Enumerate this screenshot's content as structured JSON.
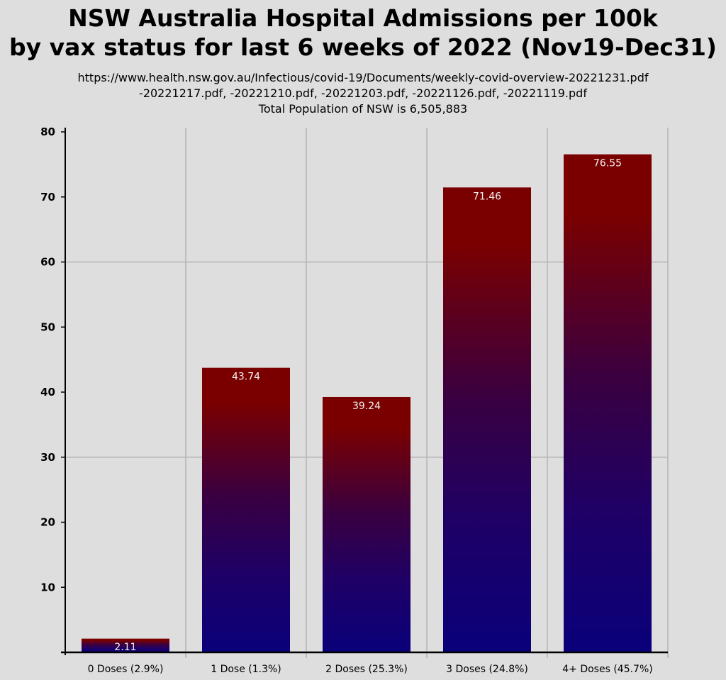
{
  "header": {
    "title_line1": "NSW Australia Hospital Admissions per 100k",
    "title_line2": "by vax status for last 6 weeks of 2022 (Nov19-Dec31)",
    "source_line1": "https://www.health.nsw.gov.au/Infectious/covid-19/Documents/weekly-covid-overview-20221231.pdf",
    "source_line2": "-20221217.pdf, -20221210.pdf, -20221203.pdf, -20221126.pdf, -20221119.pdf",
    "population_note": "Total Population of NSW is 6,505,883"
  },
  "colors": {
    "background": "#dedede",
    "bar_top": "#7a0000",
    "bar_mid": "#3a0040",
    "bar_bottom": "#0a007a",
    "grid": "#b4b4b4",
    "axis": "#000000",
    "data_label": "#f0f0f0"
  },
  "chart_data": {
    "type": "bar",
    "categories": [
      "0 Doses (2.9%)",
      "1 Dose (1.3%)",
      "2 Doses (25.3%)",
      "3 Doses (24.8%)",
      "4+ Doses (45.7%)"
    ],
    "values": [
      2.11,
      43.74,
      39.24,
      71.46,
      76.55
    ],
    "data_labels": [
      "2.11",
      "43.74",
      "39.24",
      "71.46",
      "76.55"
    ],
    "yticks": [
      10,
      20,
      30,
      40,
      50,
      60,
      70,
      80
    ],
    "ylim": [
      0,
      80
    ],
    "grid": true
  }
}
